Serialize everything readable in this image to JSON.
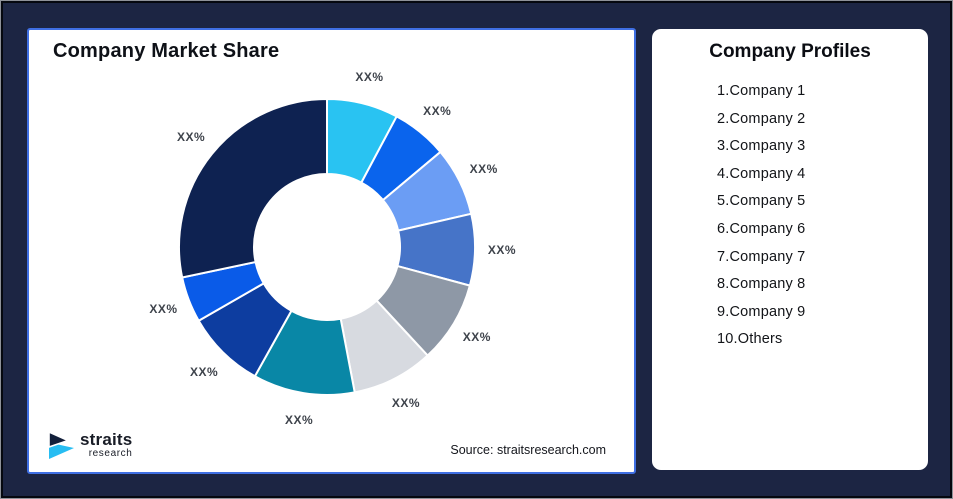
{
  "frame": {
    "background": "#1c2543",
    "outer_border_light": "#8e9299",
    "outer_border_dark": "#05080f",
    "left_card_border": "#3f6fe3"
  },
  "chart": {
    "title": "Company Market Share",
    "source": "Source: straitsresearch.com",
    "label_color": "#3e434b"
  },
  "chart_data": {
    "type": "pie",
    "subtype": "donut",
    "title": "Company Market Share",
    "direction": "clockwise",
    "start_angle_deg": 0,
    "inner_radius_ratio": 0.49,
    "data_labels_shown_as": "XX% (values masked in source image)",
    "legend_position": "right panel (Company Profiles list)",
    "source": "Source: straitsresearch.com",
    "segments": [
      {
        "name": "Company 1",
        "label": "XX%",
        "value_pct_est": 7.8,
        "color": "#29c3f2"
      },
      {
        "name": "Company 2",
        "label": "XX%",
        "value_pct_est": 6.1,
        "color": "#0a64ed"
      },
      {
        "name": "Company 3",
        "label": "XX%",
        "value_pct_est": 7.5,
        "color": "#6b9df4"
      },
      {
        "name": "Company 4",
        "label": "XX%",
        "value_pct_est": 7.8,
        "color": "#4674c8"
      },
      {
        "name": "Company 5",
        "label": "XX%",
        "value_pct_est": 8.9,
        "color": "#8e98a6"
      },
      {
        "name": "Company 6",
        "label": "XX%",
        "value_pct_est": 8.9,
        "color": "#d7dae0"
      },
      {
        "name": "Company 7",
        "label": "XX%",
        "value_pct_est": 11.1,
        "color": "#0987a6"
      },
      {
        "name": "Company 8",
        "label": "XX%",
        "value_pct_est": 8.6,
        "color": "#0d3da0"
      },
      {
        "name": "Company 9",
        "label": "XX%",
        "value_pct_est": 5.0,
        "color": "#0a5be8"
      },
      {
        "name": "Others",
        "label": "XX%",
        "value_pct_est": 28.3,
        "color": "#0e2251"
      }
    ]
  },
  "profiles": {
    "title": "Company Profiles",
    "items": [
      "1.Company 1",
      "2.Company 2",
      "3.Company 3",
      "4.Company 4",
      "5.Company 5",
      "6.Company 6",
      "7.Company 7",
      "8.Company 8",
      "9.Company 9",
      "10.Others"
    ]
  },
  "brand": {
    "name": "straits",
    "sub": "research",
    "navy": "#13203b",
    "cyan": "#27bdf2"
  }
}
